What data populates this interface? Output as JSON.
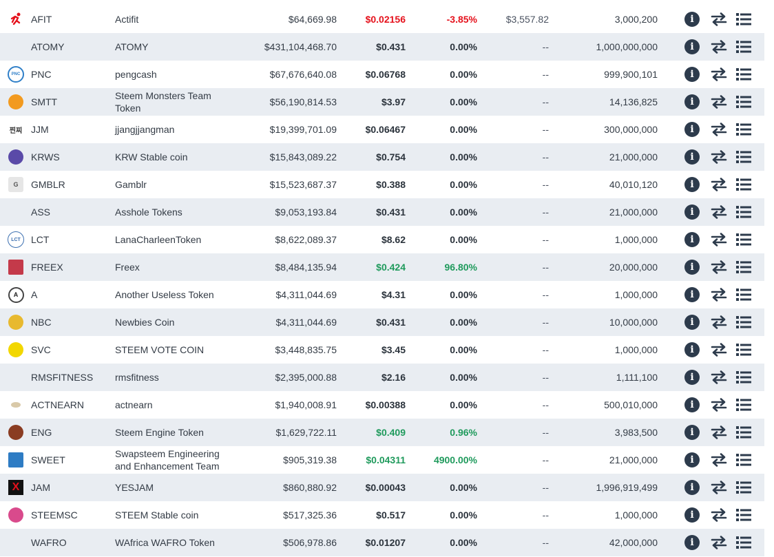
{
  "colors": {
    "negative": "#e5111c",
    "positive": "#1f9a5c",
    "row_alt": "#e9edf2",
    "icon_dark": "#2d3b4c"
  },
  "action_icons": [
    "info-icon",
    "swap-icon",
    "list-icon"
  ],
  "rows": [
    {
      "symbol": "AFIT",
      "name": "Actifit",
      "market_cap": "$64,669.98",
      "price": "$0.02156",
      "change": "-3.85%",
      "volume": "$3,557.82",
      "supply": "3,000,200",
      "trend": "down",
      "logo": "runner-icon",
      "logo_text": "",
      "logo_color": "#e5111c"
    },
    {
      "symbol": "ATOMY",
      "name": "ATOMY",
      "market_cap": "$431,104,468.70",
      "price": "$0.431",
      "change": "0.00%",
      "volume": "--",
      "supply": "1,000,000,000",
      "trend": "flat",
      "logo": "",
      "logo_text": "",
      "logo_color": ""
    },
    {
      "symbol": "PNC",
      "name": "pengcash",
      "market_cap": "$67,676,640.08",
      "price": "$0.06768",
      "change": "0.00%",
      "volume": "--",
      "supply": "999,900,101",
      "trend": "flat",
      "logo": "pengcash-logo-icon",
      "logo_text": "PNC",
      "logo_color": "#2f7fc8"
    },
    {
      "symbol": "SMTT",
      "name": "Steem Monsters Team Token",
      "market_cap": "$56,190,814.53",
      "price": "$3.97",
      "change": "0.00%",
      "volume": "--",
      "supply": "14,136,825",
      "trend": "flat",
      "logo": "steem-monsters-logo-icon",
      "logo_text": "",
      "logo_color": "#f29a1f"
    },
    {
      "symbol": "JJM",
      "name": "jjangjjangman",
      "market_cap": "$19,399,701.09",
      "price": "$0.06467",
      "change": "0.00%",
      "volume": "--",
      "supply": "300,000,000",
      "trend": "flat",
      "logo": "jjm-text-logo-icon",
      "logo_text": "찐찌",
      "logo_color": ""
    },
    {
      "symbol": "KRWS",
      "name": "KRW Stable coin",
      "market_cap": "$15,843,089.22",
      "price": "$0.754",
      "change": "0.00%",
      "volume": "--",
      "supply": "21,000,000",
      "trend": "flat",
      "logo": "krws-avatar-icon",
      "logo_text": "",
      "logo_color": "#5a4aa8"
    },
    {
      "symbol": "GMBLR",
      "name": "Gamblr",
      "market_cap": "$15,523,687.37",
      "price": "$0.388",
      "change": "0.00%",
      "volume": "--",
      "supply": "40,010,120",
      "trend": "flat",
      "logo": "gamblr-logo-icon",
      "logo_text": "G",
      "logo_color": "#e6e6e6"
    },
    {
      "symbol": "ASS",
      "name": "Asshole Tokens",
      "market_cap": "$9,053,193.84",
      "price": "$0.431",
      "change": "0.00%",
      "volume": "--",
      "supply": "21,000,000",
      "trend": "flat",
      "logo": "",
      "logo_text": "",
      "logo_color": ""
    },
    {
      "symbol": "LCT",
      "name": "LanaCharleenToken",
      "market_cap": "$8,622,089.37",
      "price": "$8.62",
      "change": "0.00%",
      "volume": "--",
      "supply": "1,000,000",
      "trend": "flat",
      "logo": "lct-logo-icon",
      "logo_text": "LCT",
      "logo_color": "#3b6fb0"
    },
    {
      "symbol": "FREEX",
      "name": "Freex",
      "market_cap": "$8,484,135.94",
      "price": "$0.424",
      "change": "96.80%",
      "volume": "--",
      "supply": "20,000,000",
      "trend": "up",
      "logo": "freex-logo-icon",
      "logo_text": "",
      "logo_color": "#c43a4a"
    },
    {
      "symbol": "A",
      "name": "Another Useless Token",
      "market_cap": "$4,311,044.69",
      "price": "$4.31",
      "change": "0.00%",
      "volume": "--",
      "supply": "1,000,000",
      "trend": "flat",
      "logo": "a-letter-logo-icon",
      "logo_text": "A",
      "logo_color": "#333333"
    },
    {
      "symbol": "NBC",
      "name": "Newbies Coin",
      "market_cap": "$4,311,044.69",
      "price": "$0.431",
      "change": "0.00%",
      "volume": "--",
      "supply": "10,000,000",
      "trend": "flat",
      "logo": "newbies-coin-logo-icon",
      "logo_text": "",
      "logo_color": "#e8b92f"
    },
    {
      "symbol": "SVC",
      "name": "STEEM VOTE COIN",
      "market_cap": "$3,448,835.75",
      "price": "$3.45",
      "change": "0.00%",
      "volume": "--",
      "supply": "1,000,000",
      "trend": "flat",
      "logo": "svc-face-logo-icon",
      "logo_text": "",
      "logo_color": "#f2d700"
    },
    {
      "symbol": "RMSFITNESS",
      "name": "rmsfitness",
      "market_cap": "$2,395,000.88",
      "price": "$2.16",
      "change": "0.00%",
      "volume": "--",
      "supply": "1,111,100",
      "trend": "flat",
      "logo": "",
      "logo_text": "",
      "logo_color": ""
    },
    {
      "symbol": "ACTNEARN",
      "name": "actnearn",
      "market_cap": "$1,940,008.91",
      "price": "$0.00388",
      "change": "0.00%",
      "volume": "--",
      "supply": "500,010,000",
      "trend": "flat",
      "logo": "actnearn-logo-icon",
      "logo_text": "",
      "logo_color": "#d9c9a8"
    },
    {
      "symbol": "ENG",
      "name": "Steem Engine Token",
      "market_cap": "$1,629,722.11",
      "price": "$0.409",
      "change": "0.96%",
      "volume": "--",
      "supply": "3,983,500",
      "trend": "up",
      "logo": "gear-logo-icon",
      "logo_text": "",
      "logo_color": "#8a3c22"
    },
    {
      "symbol": "SWEET",
      "name": "Swapsteem Engineering and Enhancement Team",
      "market_cap": "$905,319.38",
      "price": "$0.04311",
      "change": "4900.00%",
      "volume": "--",
      "supply": "21,000,000",
      "trend": "up",
      "logo": "sweet-logo-icon",
      "logo_text": "",
      "logo_color": "#2e7cc4"
    },
    {
      "symbol": "JAM",
      "name": "YESJAM",
      "market_cap": "$860,880.92",
      "price": "$0.00043",
      "change": "0.00%",
      "volume": "--",
      "supply": "1,996,919,499",
      "trend": "flat",
      "logo": "x-logo-icon",
      "logo_text": "X",
      "logo_color": "#111111"
    },
    {
      "symbol": "STEEMSC",
      "name": "STEEM Stable coin",
      "market_cap": "$517,325.36",
      "price": "$0.517",
      "change": "0.00%",
      "volume": "--",
      "supply": "1,000,000",
      "trend": "flat",
      "logo": "steemsc-avatar-icon",
      "logo_text": "",
      "logo_color": "#d94a8c"
    },
    {
      "symbol": "WAFRO",
      "name": "WAfrica WAFRO Token",
      "market_cap": "$506,978.86",
      "price": "$0.01207",
      "change": "0.00%",
      "volume": "--",
      "supply": "42,000,000",
      "trend": "flat",
      "logo": "",
      "logo_text": "",
      "logo_color": ""
    }
  ]
}
